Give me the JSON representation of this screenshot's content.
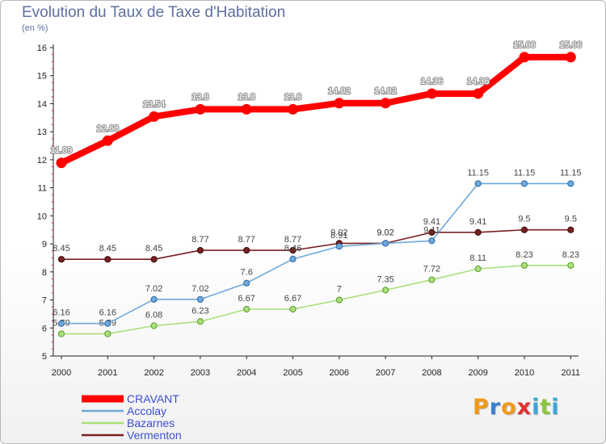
{
  "chart_data": {
    "type": "line",
    "title": "Evolution du Taux de Taxe d'Habitation",
    "unit_label": "(en %)",
    "xlabel": "",
    "ylabel": "",
    "x": [
      "2000",
      "2001",
      "2002",
      "2003",
      "2004",
      "2005",
      "2006",
      "2007",
      "2008",
      "2009",
      "2010",
      "2011"
    ],
    "ylim": [
      5,
      16
    ],
    "yticks": [
      "5",
      "6",
      "7",
      "8",
      "9",
      "10",
      "11",
      "12",
      "13",
      "14",
      "15",
      "16"
    ],
    "grid": false,
    "legend_position": "bottom-left",
    "series": [
      {
        "name": "CRAVANT",
        "color": "#ff0000",
        "values": [
          11.89,
          12.68,
          13.54,
          13.8,
          13.8,
          13.8,
          14.02,
          14.02,
          14.36,
          14.36,
          15.66,
          15.66
        ],
        "labels": [
          "11.89",
          "12.68",
          "13.54",
          "13.8",
          "13.8",
          "13.8",
          "14.02",
          "14.02",
          "14.36",
          "14.36",
          "15.66",
          "15.66"
        ]
      },
      {
        "name": "Accolay",
        "color": "#6fa8d8",
        "values": [
          6.16,
          6.16,
          7.02,
          7.02,
          7.6,
          8.46,
          8.91,
          9.02,
          9.11,
          11.15,
          11.15,
          11.15
        ],
        "labels": [
          "6.16",
          "6.16",
          "7.02",
          "7.02",
          "7.6",
          "8.46",
          "8.91",
          "9.02",
          "9.11",
          "11.15",
          "11.15",
          "11.15"
        ]
      },
      {
        "name": "Bazarnes",
        "color": "#a9e07a",
        "values": [
          5.79,
          5.79,
          6.08,
          6.23,
          6.67,
          6.67,
          7,
          7.35,
          7.72,
          8.11,
          8.23,
          8.23
        ],
        "labels": [
          "5.79",
          "5.79",
          "6.08",
          "6.23",
          "6.67",
          "6.67",
          "7",
          "7.35",
          "7.72",
          "8.11",
          "8.23",
          "8.23"
        ]
      },
      {
        "name": "Vermenton",
        "color": "#7a2020",
        "values": [
          8.45,
          8.45,
          8.45,
          8.77,
          8.77,
          8.77,
          9.02,
          9.02,
          9.41,
          9.41,
          9.5,
          9.5
        ],
        "labels": [
          "8.45",
          "8.45",
          "8.45",
          "8.77",
          "8.77",
          "8.77",
          "9.02",
          "9.02",
          "9.41",
          "9.41",
          "9.5",
          "9.5"
        ]
      }
    ]
  },
  "logo": {
    "letters": [
      {
        "ch": "P",
        "color": "#f09a1a"
      },
      {
        "ch": "r",
        "color": "#3b7fd0"
      },
      {
        "ch": "o",
        "color": "#f09a1a"
      },
      {
        "ch": "x",
        "color": "#e0302a"
      },
      {
        "ch": "i",
        "color": "#3ba6d8"
      },
      {
        "ch": "t",
        "color": "#8cc63f"
      },
      {
        "ch": "i",
        "color": "#3ba6d8"
      }
    ]
  }
}
